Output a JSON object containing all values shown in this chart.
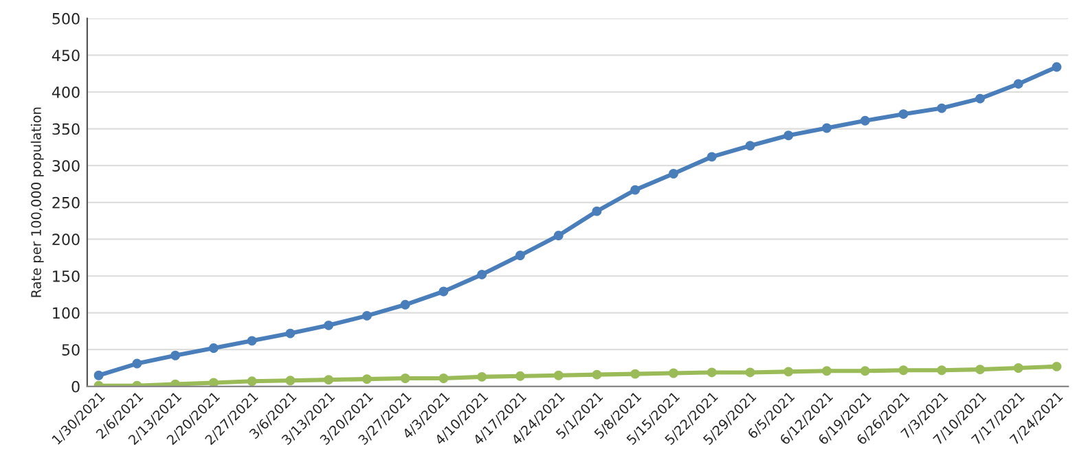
{
  "chart_data": {
    "type": "line",
    "ylabel": "Rate per 100,000 population",
    "categories": [
      "1/30/2021",
      "2/6/2021",
      "2/13/2021",
      "2/20/2021",
      "2/27/2021",
      "3/6/2021",
      "3/13/2021",
      "3/20/2021",
      "3/27/2021",
      "4/3/2021",
      "4/10/2021",
      "4/17/2021",
      "4/24/2021",
      "5/1/2021",
      "5/8/2021",
      "5/15/2021",
      "5/22/2021",
      "5/29/2021",
      "6/5/2021",
      "6/12/2021",
      "6/19/2021",
      "6/26/2021",
      "7/3/2021",
      "7/10/2021",
      "7/17/2021",
      "7/24/2021"
    ],
    "series": [
      {
        "color": "#4a7ebb",
        "values": [
          15,
          31,
          42,
          52,
          62,
          72,
          83,
          96,
          111,
          129,
          152,
          178,
          205,
          238,
          267,
          289,
          312,
          327,
          341,
          351,
          361,
          370,
          378,
          391,
          411,
          434
        ]
      },
      {
        "color": "#9bbb59",
        "values": [
          1,
          1,
          3,
          5,
          7,
          8,
          9,
          10,
          11,
          11,
          13,
          14,
          15,
          16,
          17,
          18,
          19,
          19,
          20,
          21,
          21,
          22,
          22,
          23,
          25,
          27
        ]
      }
    ],
    "ylim": [
      0,
      500
    ],
    "yticks": [
      0,
      50,
      100,
      150,
      200,
      250,
      300,
      350,
      400,
      450,
      500
    ],
    "grid": "y",
    "marker": "circle",
    "line_style": "solid"
  }
}
